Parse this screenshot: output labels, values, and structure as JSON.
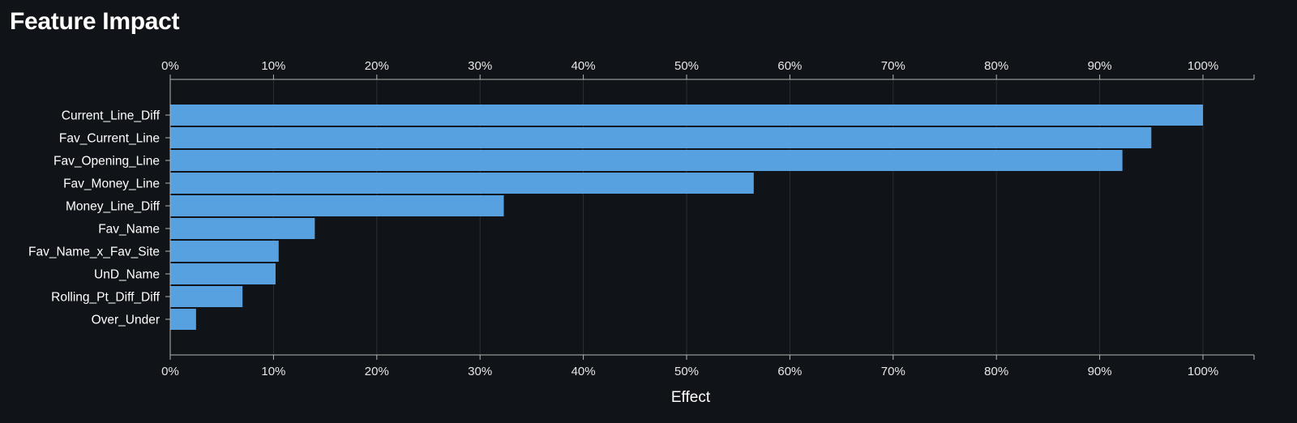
{
  "title": "Feature Impact",
  "colors": {
    "background": "#101317",
    "bar": "#58a1e0",
    "grid": "#2b2f35",
    "axis": "#b4b4b4",
    "text": "#ffffff"
  },
  "chart_data": {
    "type": "bar",
    "orientation": "horizontal",
    "title": "Feature Impact",
    "xlabel": "Effect",
    "ylabel": "",
    "xlim": [
      0,
      105
    ],
    "x_ticks": [
      "0%",
      "10%",
      "20%",
      "30%",
      "40%",
      "50%",
      "60%",
      "70%",
      "80%",
      "90%",
      "100%"
    ],
    "x_axis_positions": [
      "top",
      "bottom"
    ],
    "grid": true,
    "categories": [
      "Current_Line_Diff",
      "Fav_Current_Line",
      "Fav_Opening_Line",
      "Fav_Money_Line",
      "Money_Line_Diff",
      "Fav_Name",
      "Fav_Name_x_Fav_Site",
      "UnD_Name",
      "Rolling_Pt_Diff_Diff",
      "Over_Under"
    ],
    "values": [
      100,
      95,
      92.2,
      56.5,
      32.3,
      14,
      10.5,
      10.2,
      7,
      2.5
    ]
  }
}
